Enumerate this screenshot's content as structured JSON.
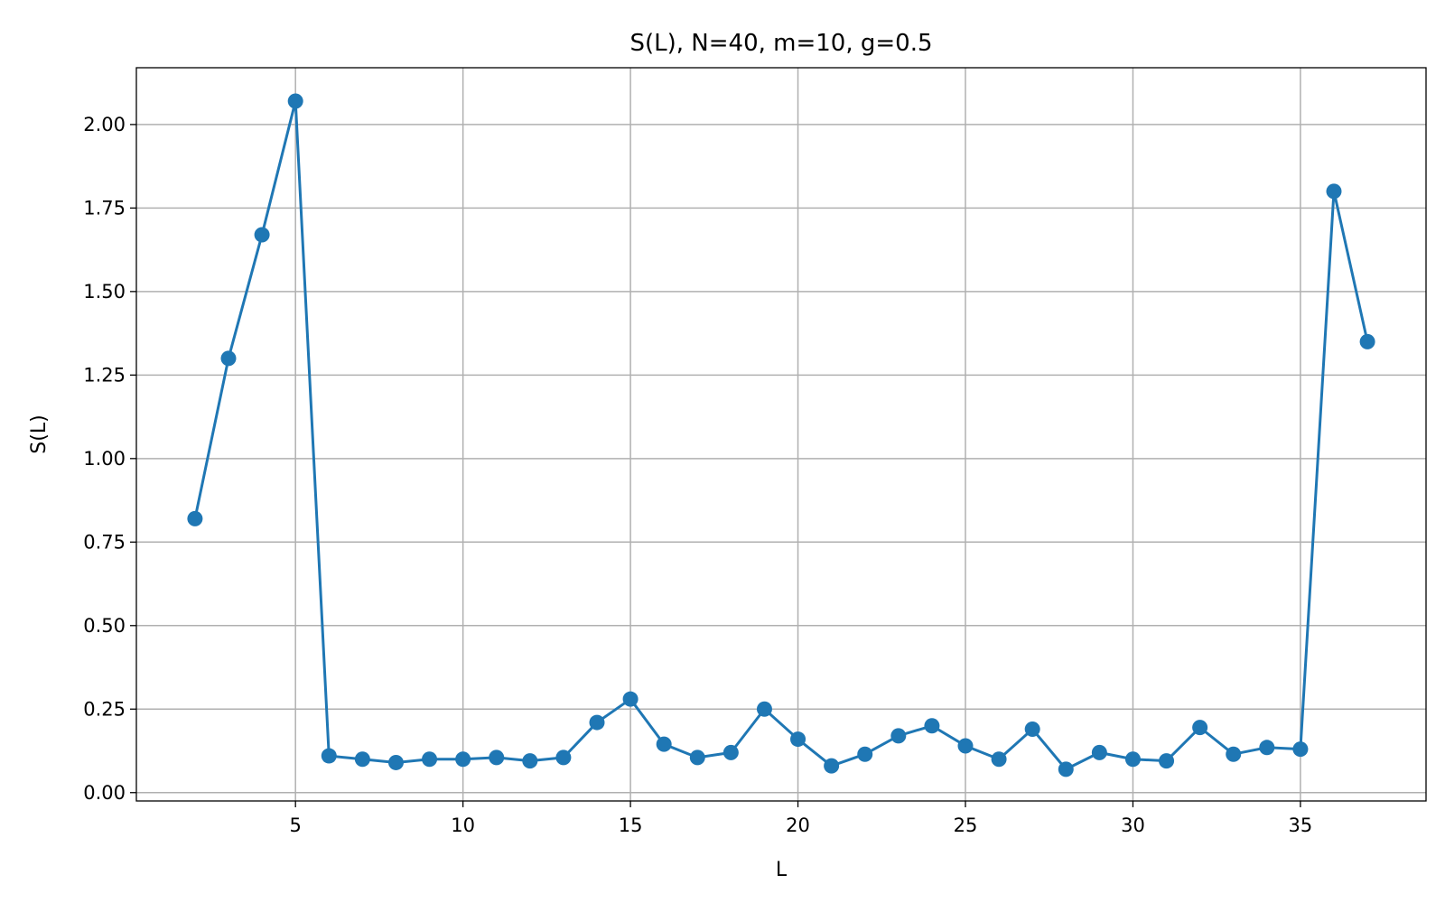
{
  "chart_data": {
    "type": "line",
    "title": "S(L), N=40, m=10, g=0.5",
    "xlabel": "L",
    "ylabel": "S(L)",
    "xlim": [
      0.25,
      38.75
    ],
    "ylim": [
      -0.025,
      2.17
    ],
    "grid": true,
    "x_ticks": [
      5,
      10,
      15,
      20,
      25,
      30,
      35
    ],
    "x_tick_labels": [
      "5",
      "10",
      "15",
      "20",
      "25",
      "30",
      "35"
    ],
    "y_ticks": [
      0.0,
      0.25,
      0.5,
      0.75,
      1.0,
      1.25,
      1.5,
      1.75,
      2.0
    ],
    "y_tick_labels": [
      "0.00",
      "0.25",
      "0.50",
      "0.75",
      "1.00",
      "1.25",
      "1.50",
      "1.75",
      "2.00"
    ],
    "colors": {
      "series": "#1f77b4",
      "grid": "#b0b0b0"
    },
    "series": [
      {
        "marker": "circle",
        "x": [
          2,
          3,
          4,
          5,
          6,
          7,
          8,
          9,
          10,
          11,
          12,
          13,
          14,
          15,
          16,
          17,
          18,
          19,
          20,
          21,
          22,
          23,
          24,
          25,
          26,
          27,
          28,
          29,
          30,
          31,
          32,
          33,
          34,
          35,
          36,
          37
        ],
        "y": [
          0.82,
          1.3,
          1.67,
          2.07,
          0.11,
          0.1,
          0.09,
          0.1,
          0.1,
          0.105,
          0.095,
          0.105,
          0.21,
          0.28,
          0.145,
          0.105,
          0.12,
          0.25,
          0.16,
          0.08,
          0.115,
          0.17,
          0.2,
          0.14,
          0.1,
          0.19,
          0.07,
          0.12,
          0.1,
          0.095,
          0.195,
          0.115,
          0.135,
          0.13,
          1.8,
          1.35
        ]
      }
    ]
  }
}
